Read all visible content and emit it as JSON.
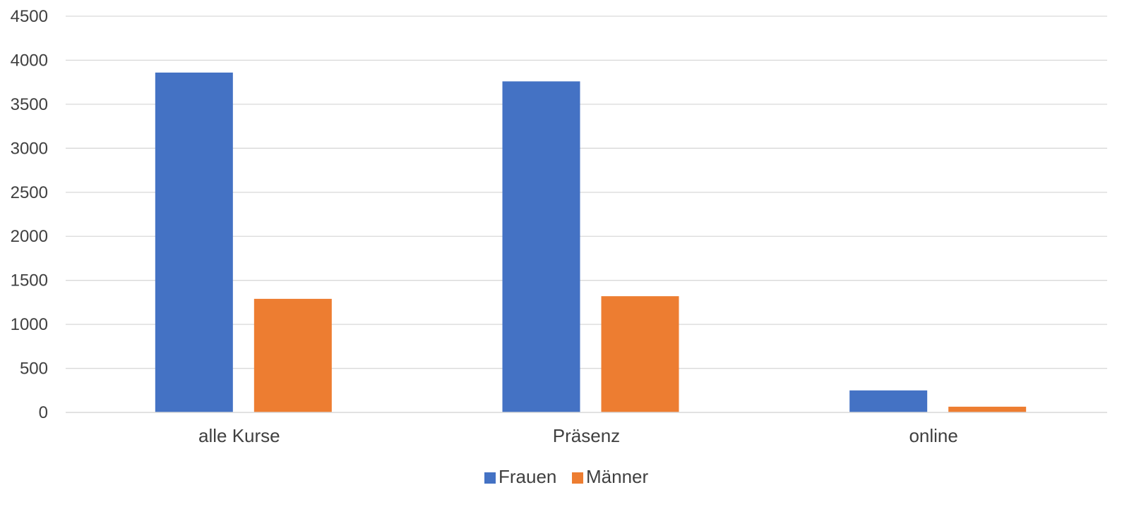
{
  "chart_data": {
    "type": "bar",
    "categories": [
      "alle Kurse",
      "Präsenz",
      "online"
    ],
    "series": [
      {
        "name": "Frauen",
        "values": [
          3860,
          3760,
          250
        ],
        "color": "#4472C4"
      },
      {
        "name": "Männer",
        "values": [
          1290,
          1320,
          65
        ],
        "color": "#ED7D31"
      }
    ],
    "ylim": [
      0,
      4500
    ],
    "yticks": [
      0,
      500,
      1000,
      1500,
      2000,
      2500,
      3000,
      3500,
      4000,
      4500
    ],
    "grid": true,
    "legend_position": "bottom-center",
    "title": "",
    "xlabel": "",
    "ylabel": ""
  }
}
